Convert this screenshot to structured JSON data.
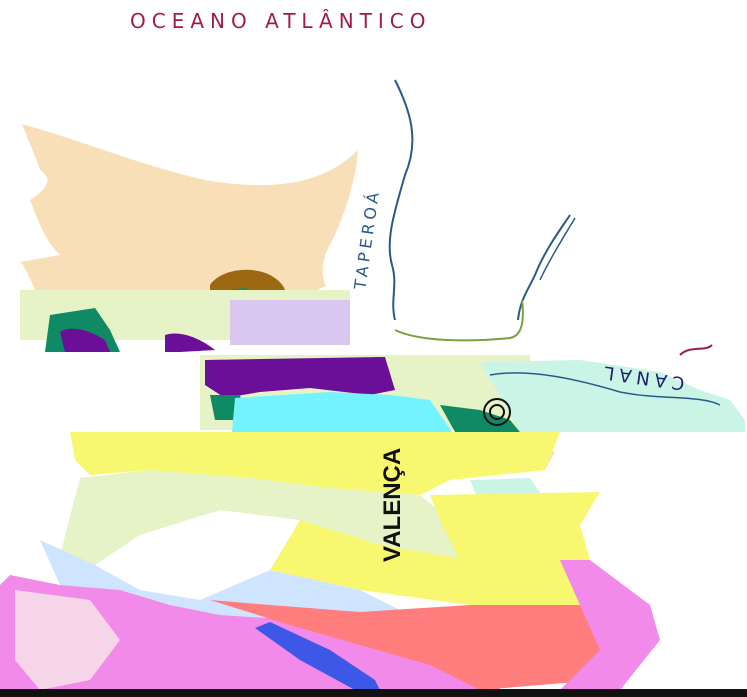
{
  "map": {
    "labels": {
      "ocean": "OCEANO ATLÂNTICO",
      "canal": "CANAL",
      "river": "TAPEROÁ",
      "city": "VALENÇA"
    },
    "colors": {
      "unit_beige": "#f8dfb8",
      "unit_green": "#0f8a64",
      "unit_purple": "#6b0f98",
      "unit_cyan": "#72f3ff",
      "unit_brown": "#9c6812",
      "unit_yellow": "#f7f86f",
      "unit_pale_green": "#e6f3c6",
      "unit_light_blue": "#cfe5ff",
      "unit_pink": "#f28ae9",
      "unit_salmon": "#ff7d7d",
      "unit_blue": "#3d58e6",
      "unit_mint": "#c9f4e6",
      "unit_lilac": "#d9c7ef",
      "river_line": "#2b5a8a",
      "ocean_label": "#a01d4a",
      "canal_label": "#1f1f6a"
    }
  }
}
